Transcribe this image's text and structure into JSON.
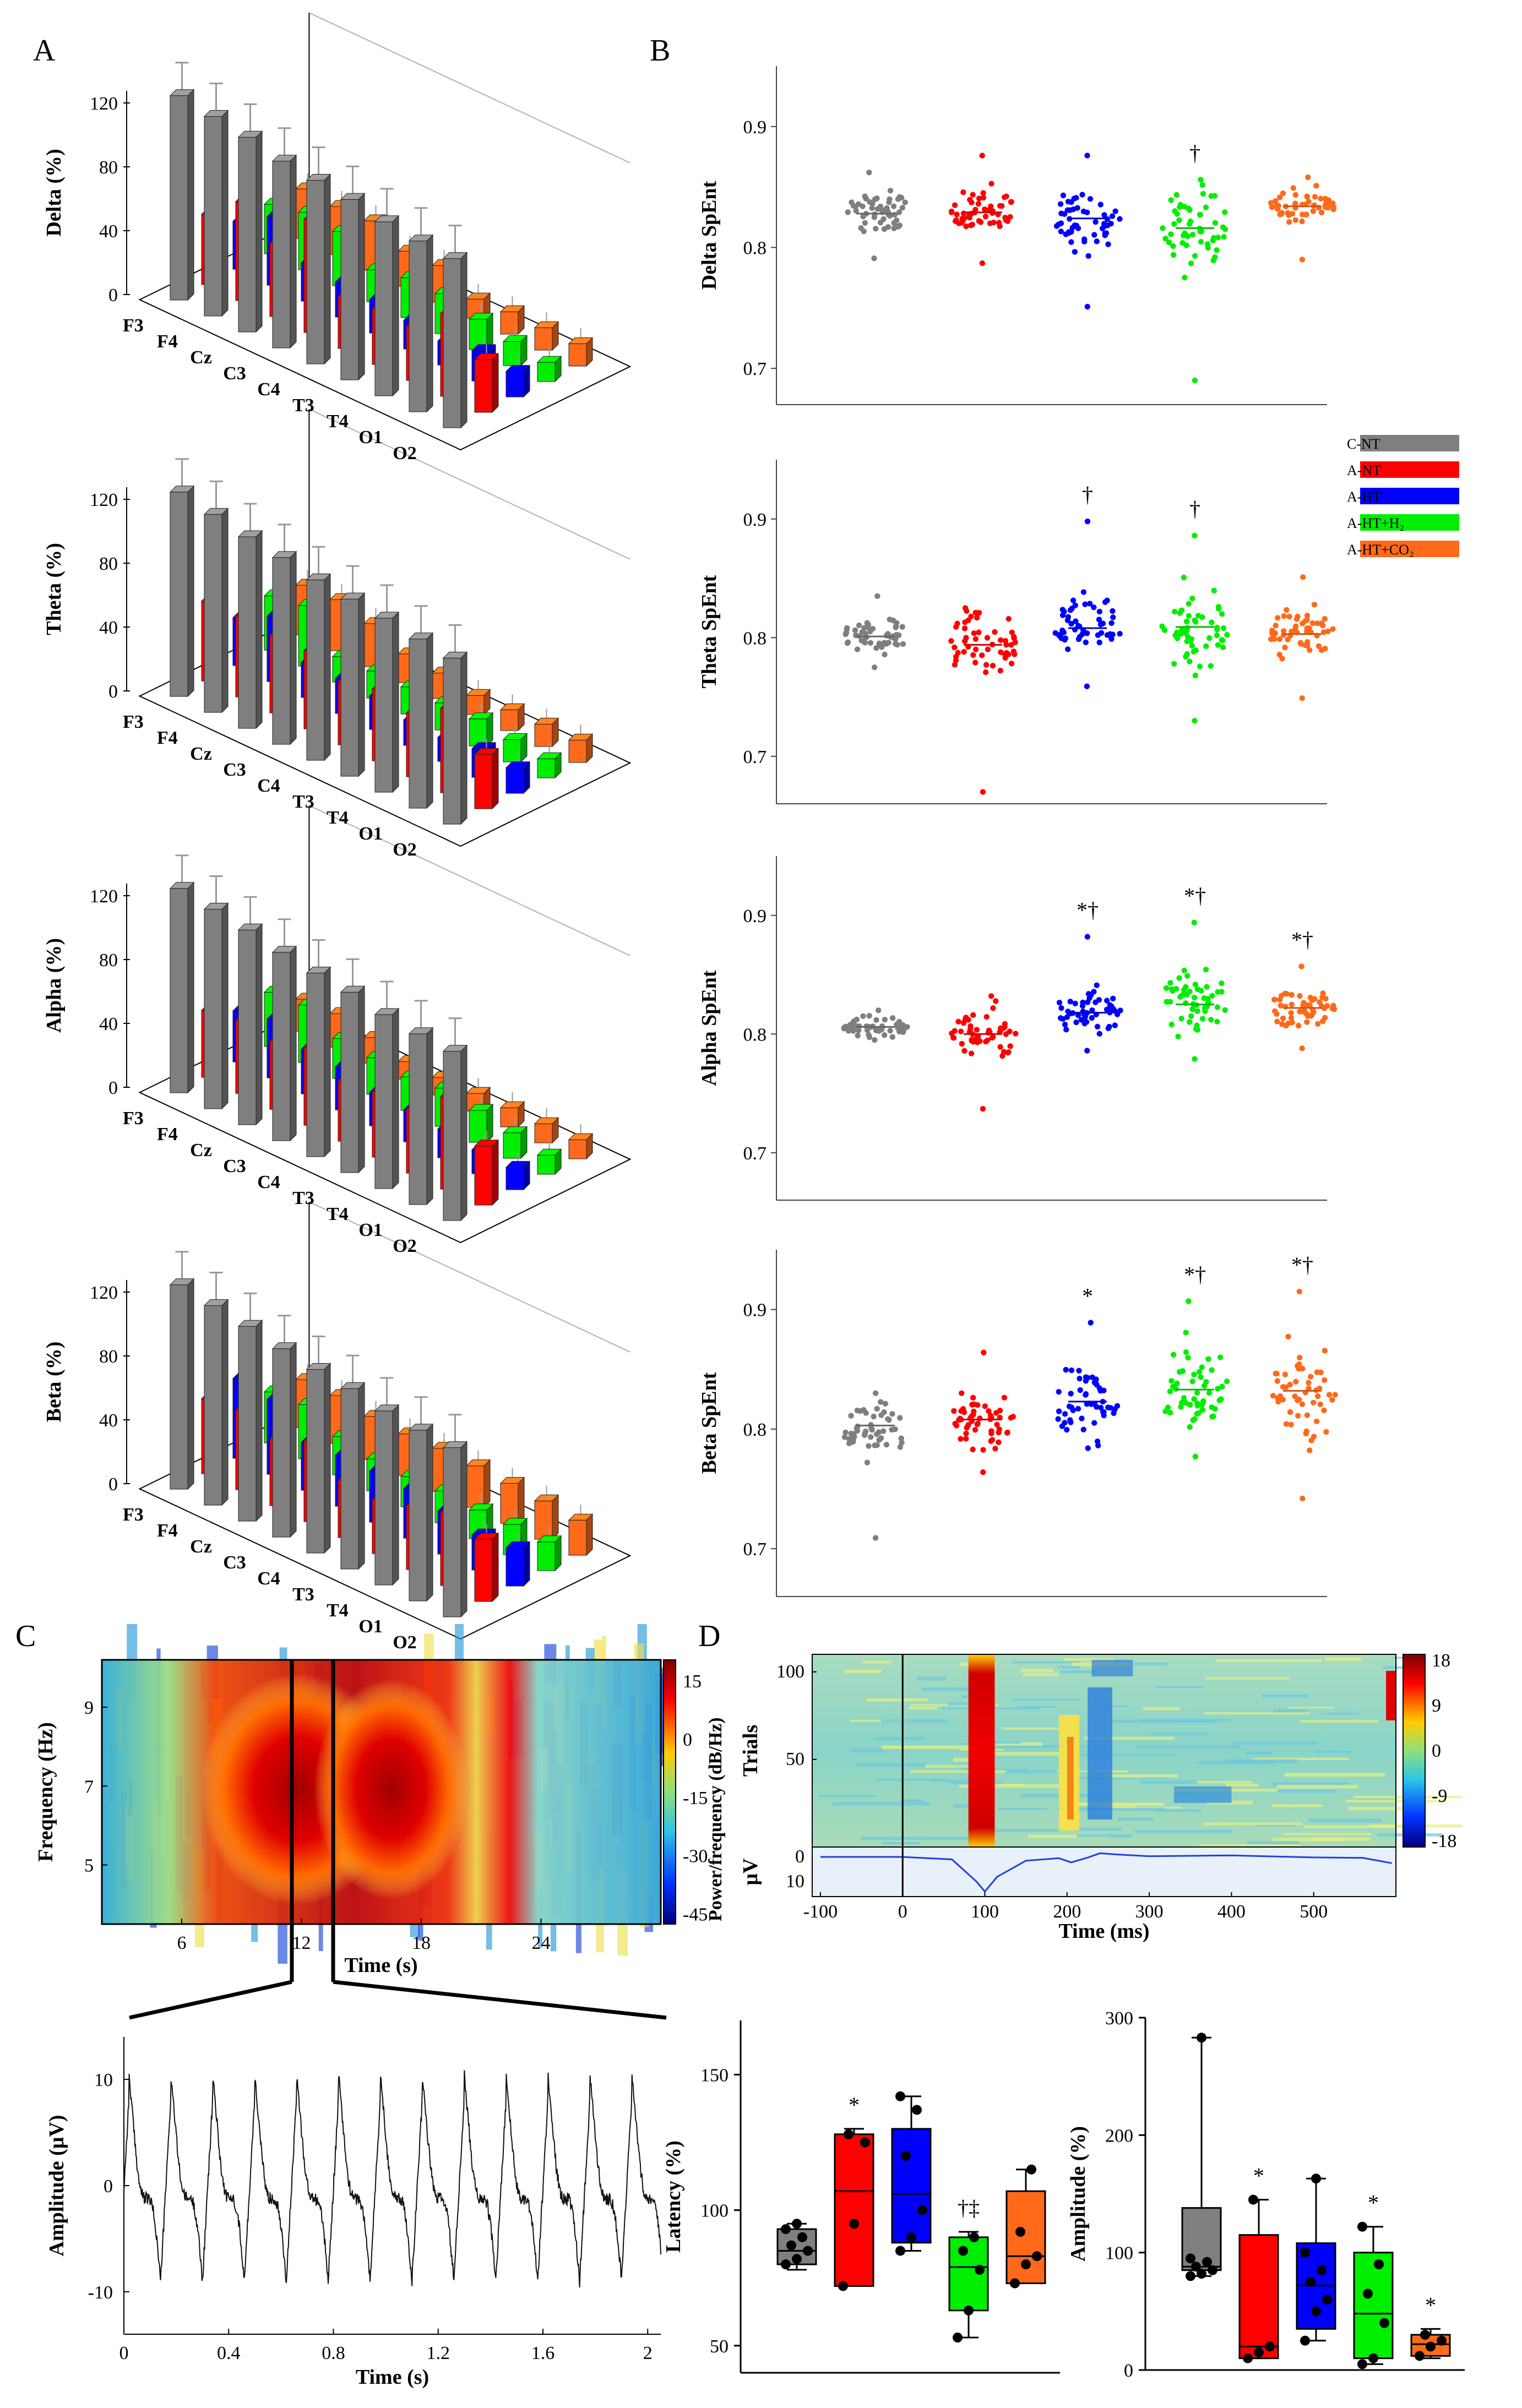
{
  "panels": {
    "A": "A",
    "B": "B",
    "C": "C",
    "D": "D"
  },
  "colors": {
    "C-NT": "#7f7f7f",
    "A-NT": "#ff0000",
    "A-HT": "#0000ff",
    "A-HT+H2": "#00ee00",
    "A-HT+CO2": "#ff6a1a"
  },
  "legend": [
    {
      "key": "C-NT",
      "label": "C-NT"
    },
    {
      "key": "A-NT",
      "label": "A-NT"
    },
    {
      "key": "A-HT",
      "label": "A-HT"
    },
    {
      "key": "A-HT+H2",
      "label": "A-HT+H₂"
    },
    {
      "key": "A-HT+CO2",
      "label": "A-HT+CO₂"
    }
  ],
  "chart_data": [
    {
      "id": "A-delta",
      "type": "bar",
      "style": "3d",
      "ylabel": "Delta (%)",
      "yticks": [
        "0",
        "40",
        "80",
        "120"
      ],
      "ylim": [
        0,
        120
      ],
      "categories": [
        "F3",
        "F4",
        "Cz",
        "C3",
        "C4",
        "T3",
        "T4",
        "O1",
        "O2"
      ],
      "series": [
        {
          "name": "C-NT",
          "values": [
            128,
            125,
            122,
            117,
            115,
            113,
            109,
            107,
            106
          ]
        },
        {
          "name": "A-NT",
          "values": [
            44,
            62,
            46,
            71,
            33,
            35,
            34,
            52,
            33
          ]
        },
        {
          "name": "A-HT",
          "values": [
            30,
            43,
            24,
            22,
            21,
            18,
            15,
            19,
            16
          ]
        },
        {
          "name": "A-HT+H2",
          "values": [
            31,
            36,
            34,
            20,
            25,
            25,
            19,
            15,
            12
          ]
        },
        {
          "name": "A-HT+CO2",
          "values": [
            31,
            30,
            31,
            22,
            23,
            12,
            14,
            14,
            14
          ]
        }
      ]
    },
    {
      "id": "A-theta",
      "type": "bar",
      "style": "3d",
      "ylabel": "Theta (%)",
      "yticks": [
        "0",
        "40",
        "80",
        "120"
      ],
      "ylim": [
        0,
        120
      ],
      "categories": [
        "F3",
        "F4",
        "Cz",
        "C3",
        "C4",
        "T3",
        "T4",
        "O1",
        "O2"
      ],
      "series": [
        {
          "name": "C-NT",
          "values": [
            128,
            124,
            120,
            117,
            113,
            111,
            109,
            106,
            104
          ]
        },
        {
          "name": "A-NT",
          "values": [
            50,
            51,
            49,
            49,
            40,
            45,
            40,
            53,
            34
          ]
        },
        {
          "name": "A-HT",
          "values": [
            30,
            41,
            22,
            22,
            21,
            16,
            15,
            18,
            16
          ]
        },
        {
          "name": "A-HT+H2",
          "values": [
            34,
            38,
            16,
            17,
            17,
            17,
            17,
            14,
            12
          ]
        },
        {
          "name": "A-HT+CO2",
          "values": [
            31,
            32,
            27,
            18,
            16,
            12,
            13,
            14,
            14
          ]
        }
      ]
    },
    {
      "id": "A-alpha",
      "type": "bar",
      "style": "3d",
      "ylabel": "Alpha (%)",
      "yticks": [
        "0",
        "40",
        "80",
        "120"
      ],
      "ylim": [
        0,
        120
      ],
      "categories": [
        "F3",
        "F4",
        "Cz",
        "C3",
        "C4",
        "T3",
        "T4",
        "O1",
        "O2"
      ],
      "series": [
        {
          "name": "C-NT",
          "values": [
            128,
            125,
            122,
            118,
            115,
            113,
            109,
            107,
            106
          ]
        },
        {
          "name": "A-NT",
          "values": [
            42,
            46,
            43,
            49,
            38,
            41,
            40,
            58,
            37
          ]
        },
        {
          "name": "A-HT",
          "values": [
            32,
            37,
            28,
            27,
            21,
            20,
            18,
            15,
            14
          ]
        },
        {
          "name": "A-HT+H2",
          "values": [
            34,
            36,
            25,
            23,
            21,
            24,
            20,
            16,
            12
          ]
        },
        {
          "name": "A-HT+CO2",
          "values": [
            20,
            21,
            16,
            11,
            11,
            11,
            12,
            12,
            12
          ]
        }
      ]
    },
    {
      "id": "A-beta",
      "type": "bar",
      "style": "3d",
      "ylabel": "Beta (%)",
      "yticks": [
        "0",
        "40",
        "80",
        "120"
      ],
      "ylim": [
        0,
        120
      ],
      "categories": [
        "F3",
        "F4",
        "Cz",
        "C3",
        "C4",
        "T3",
        "T4",
        "O1",
        "O2"
      ],
      "series": [
        {
          "name": "C-NT",
          "values": [
            128,
            125,
            122,
            118,
            115,
            113,
            109,
            107,
            106
          ]
        },
        {
          "name": "A-NT",
          "values": [
            47,
            50,
            42,
            51,
            36,
            34,
            40,
            46,
            39
          ]
        },
        {
          "name": "A-HT",
          "values": [
            50,
            47,
            30,
            32,
            32,
            31,
            27,
            22,
            24
          ]
        },
        {
          "name": "A-HT+H2",
          "values": [
            32,
            34,
            24,
            20,
            19,
            20,
            18,
            19,
            18
          ]
        },
        {
          "name": "A-HT+CO2",
          "values": [
            30,
            30,
            27,
            26,
            27,
            26,
            25,
            24,
            22
          ]
        }
      ]
    },
    {
      "id": "B-delta",
      "type": "scatter",
      "style": "beeswarm",
      "ylabel": "Delta SpEnt",
      "yticks": [
        "0.7",
        "0.8",
        "0.9"
      ],
      "ylim": [
        0.67,
        0.95
      ],
      "groups": [
        "C-NT",
        "A-NT",
        "A-HT",
        "A-HT+H2",
        "A-HT+CO2"
      ],
      "means": [
        0.828,
        0.829,
        0.824,
        0.816,
        0.834
      ],
      "sd": [
        0.018,
        0.017,
        0.022,
        0.035,
        0.013
      ],
      "mins": [
        0.791,
        0.787,
        0.751,
        0.69,
        0.79
      ],
      "maxs": [
        0.862,
        0.876,
        0.876,
        0.856,
        0.858
      ],
      "annotations": [
        "",
        "",
        "",
        "†",
        ""
      ]
    },
    {
      "id": "B-theta",
      "type": "scatter",
      "style": "beeswarm",
      "ylabel": "Theta SpEnt",
      "yticks": [
        "0.7",
        "0.8",
        "0.9"
      ],
      "ylim": [
        0.66,
        0.95
      ],
      "groups": [
        "C-NT",
        "A-NT",
        "A-HT",
        "A-HT+H2",
        "A-HT+CO2"
      ],
      "means": [
        0.801,
        0.794,
        0.808,
        0.809,
        0.803
      ],
      "sd": [
        0.013,
        0.029,
        0.022,
        0.031,
        0.019
      ],
      "mins": [
        0.775,
        0.67,
        0.759,
        0.73,
        0.749
      ],
      "maxs": [
        0.835,
        0.825,
        0.898,
        0.886,
        0.851
      ],
      "annotations": [
        "",
        "",
        "†",
        "†",
        ""
      ]
    },
    {
      "id": "B-alpha",
      "type": "scatter",
      "style": "beeswarm",
      "ylabel": "Alpha SpEnt",
      "yticks": [
        "0.7",
        "0.8",
        "0.9"
      ],
      "ylim": [
        0.66,
        0.95
      ],
      "groups": [
        "C-NT",
        "A-NT",
        "A-HT",
        "A-HT+H2",
        "A-HT+CO2"
      ],
      "means": [
        0.806,
        0.8,
        0.818,
        0.825,
        0.822
      ],
      "sd": [
        0.007,
        0.019,
        0.017,
        0.024,
        0.016
      ],
      "mins": [
        0.795,
        0.737,
        0.786,
        0.779,
        0.788
      ],
      "maxs": [
        0.82,
        0.832,
        0.882,
        0.894,
        0.857
      ],
      "annotations": [
        "",
        "",
        "*†",
        "*†",
        "*†"
      ]
    },
    {
      "id": "B-beta",
      "type": "scatter",
      "style": "beeswarm",
      "ylabel": "Beta SpEnt",
      "yticks": [
        "0.7",
        "0.8",
        "0.9"
      ],
      "ylim": [
        0.66,
        0.95
      ],
      "groups": [
        "C-NT",
        "A-NT",
        "A-HT",
        "A-HT+H2",
        "A-HT+CO2"
      ],
      "means": [
        0.803,
        0.808,
        0.823,
        0.833,
        0.832
      ],
      "sd": [
        0.023,
        0.021,
        0.029,
        0.037,
        0.038
      ],
      "mins": [
        0.709,
        0.764,
        0.784,
        0.777,
        0.742
      ],
      "maxs": [
        0.83,
        0.864,
        0.889,
        0.907,
        0.915
      ],
      "annotations": [
        "",
        "",
        "*",
        "*†",
        "*†"
      ]
    },
    {
      "id": "C-spectrogram",
      "type": "heatmap",
      "xlabel": "Time (s)",
      "ylabel": "Frequency (Hz)",
      "xticks": [
        "6",
        "12",
        "18",
        "24"
      ],
      "yticks": [
        "5",
        "7",
        "9"
      ],
      "xlim": [
        2,
        30
      ],
      "ylim": [
        3.5,
        10.2
      ],
      "colorbar_label": "Power/frequency (dB/Hz)",
      "colorbar_ticks": [
        "15",
        "0",
        "-15",
        "-30",
        "-45"
      ],
      "markers_s": [
        11,
        12.9
      ]
    },
    {
      "id": "C-trace",
      "type": "line",
      "xlabel": "Time (s)",
      "ylabel": "Amplitude (μV)",
      "xticks": [
        "0",
        "0.4",
        "0.8",
        "1.2",
        "1.6",
        "2"
      ],
      "yticks": [
        "-10",
        "0",
        "10"
      ],
      "xlim": [
        0,
        2.05
      ],
      "ylim": [
        -14,
        14
      ],
      "cycle_s": 0.16,
      "peak_uv": 8.5,
      "trough_uv": -9
    },
    {
      "id": "D-erp-image",
      "type": "heatmap",
      "xlabel": "Time (ms)",
      "ylabel": "Trials",
      "xticks": [
        "-100",
        "0",
        "100",
        "200",
        "300",
        "400",
        "500"
      ],
      "yticks": [
        "50",
        "100"
      ],
      "colorbar_ticks": [
        "18",
        "9",
        "0",
        "-9",
        "-18"
      ],
      "xlim": [
        -110,
        600
      ],
      "ylim": [
        0,
        110
      ],
      "erp_ylabel": "μV",
      "erp_yticks": [
        "0",
        "10"
      ],
      "erp_points": [
        [
          -100,
          0
        ],
        [
          0,
          0
        ],
        [
          60,
          1
        ],
        [
          90,
          10
        ],
        [
          100,
          14
        ],
        [
          115,
          8
        ],
        [
          150,
          1.5
        ],
        [
          190,
          0.5
        ],
        [
          205,
          2.2
        ],
        [
          225,
          0.3
        ],
        [
          240,
          -1.5
        ],
        [
          260,
          -1
        ],
        [
          300,
          -0.3
        ],
        [
          400,
          -0.6
        ],
        [
          500,
          0.2
        ],
        [
          560,
          0.4
        ],
        [
          595,
          2.5
        ]
      ]
    },
    {
      "id": "D-latency",
      "type": "box",
      "ylabel": "Latency (%)",
      "yticks": [
        "50",
        "100",
        "150"
      ],
      "ylim": [
        40,
        170
      ],
      "groups": [
        "C-NT",
        "A-NT",
        "A-HT",
        "A-HT+H2",
        "A-HT+CO2"
      ],
      "q1": [
        80,
        72,
        88,
        63,
        73
      ],
      "median": [
        85,
        107,
        106,
        79,
        83
      ],
      "q3": [
        93,
        128,
        130,
        90,
        107
      ],
      "whisk_lo": [
        78,
        72,
        85,
        53,
        73
      ],
      "whisk_hi": [
        95,
        130,
        142,
        92,
        115
      ],
      "points": [
        [
          80,
          82,
          85,
          87,
          90,
          93,
          95
        ],
        [
          72,
          95,
          125,
          128
        ],
        [
          85,
          90,
          100,
          120,
          137,
          142
        ],
        [
          53,
          63,
          78,
          85,
          90
        ],
        [
          73,
          80,
          83,
          92,
          115
        ]
      ],
      "annotations": [
        "",
        "*",
        "",
        "†‡",
        ""
      ]
    },
    {
      "id": "D-amplitude",
      "type": "box",
      "ylabel": "Amplitude (%)",
      "yticks": [
        "0",
        "100",
        "200",
        "300"
      ],
      "ylim": [
        0,
        300
      ],
      "groups": [
        "C-NT",
        "A-NT",
        "A-HT",
        "A-HT+H2",
        "A-HT+CO2"
      ],
      "q1": [
        85,
        10,
        35,
        10,
        12
      ],
      "median": [
        88,
        20,
        72,
        48,
        22
      ],
      "q3": [
        138,
        115,
        108,
        100,
        30
      ],
      "whisk_lo": [
        80,
        10,
        25,
        5,
        10
      ],
      "whisk_hi": [
        283,
        145,
        163,
        122,
        35
      ],
      "points": [
        [
          80,
          82,
          85,
          88,
          92,
          95,
          283
        ],
        [
          10,
          15,
          20,
          145
        ],
        [
          25,
          50,
          60,
          75,
          85,
          100,
          163
        ],
        [
          5,
          10,
          40,
          65,
          90,
          122
        ],
        [
          12,
          20,
          25,
          30
        ]
      ],
      "annotations": [
        "",
        "*",
        "",
        "*",
        "*"
      ]
    }
  ]
}
